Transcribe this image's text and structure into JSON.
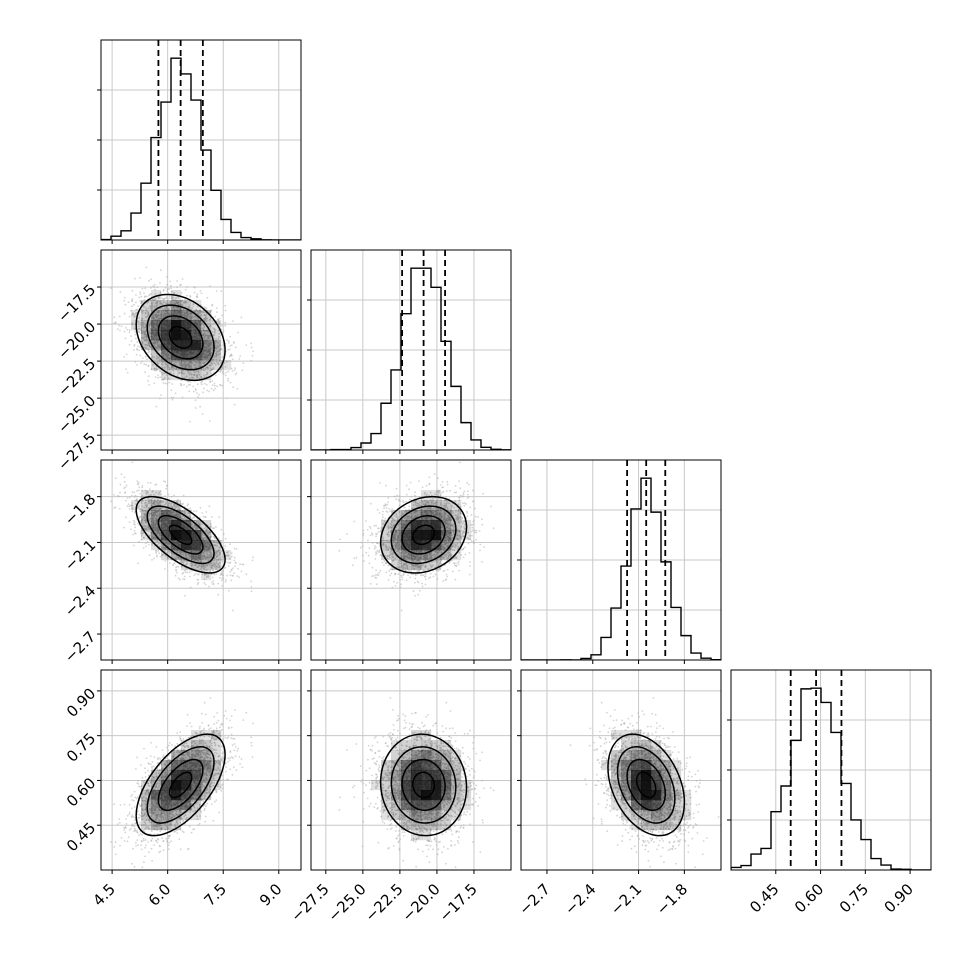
{
  "chart_data": {
    "type": "corner",
    "parameters": [
      {
        "xlim": [
          4.2,
          9.6
        ],
        "ticks": [
          4.5,
          6.0,
          7.5,
          9.0
        ],
        "tick_labels": [
          "4.5",
          "6.0",
          "7.5",
          "9.0"
        ],
        "mean": 6.35,
        "sd": 0.6,
        "quantiles": [
          5.75,
          6.35,
          6.95
        ]
      },
      {
        "xlim": [
          -28.5,
          -15.0
        ],
        "ticks": [
          -27.5,
          -25.0,
          -22.5,
          -20.0,
          -17.5
        ],
        "tick_labels": [
          "−27.5",
          "−25.0",
          "−22.5",
          "−20.0",
          "−17.5"
        ],
        "mean": -20.9,
        "sd": 1.45,
        "quantiles": [
          -22.35,
          -20.9,
          -19.45
        ]
      },
      {
        "xlim": [
          -2.87,
          -1.56
        ],
        "ticks": [
          -2.7,
          -2.4,
          -2.1,
          -1.8
        ],
        "tick_labels": [
          "−2.7",
          "−2.4",
          "−2.1",
          "−1.8"
        ],
        "mean": -2.05,
        "sd": 0.125,
        "quantiles": [
          -2.175,
          -2.05,
          -1.925
        ]
      },
      {
        "xlim": [
          0.3,
          0.97
        ],
        "ticks": [
          0.45,
          0.6,
          0.75,
          0.9
        ],
        "tick_labels": [
          "0.45",
          "0.60",
          "0.75",
          "0.90"
        ],
        "mean": 0.585,
        "sd": 0.085,
        "quantiles": [
          0.5,
          0.585,
          0.67
        ]
      }
    ],
    "correlations": [
      [
        1.0,
        -0.3,
        -0.65,
        0.6
      ],
      [
        -0.3,
        1.0,
        0.2,
        -0.05
      ],
      [
        -0.65,
        0.2,
        1.0,
        -0.35
      ],
      [
        0.6,
        -0.05,
        -0.35,
        1.0
      ]
    ],
    "histogram_bins": 20,
    "samples": 5000,
    "grid": true,
    "colors": {
      "hist_line": "#000000",
      "scatter": "#b0b0b0",
      "grid": "#c8c8c8",
      "density": "#000000"
    }
  }
}
